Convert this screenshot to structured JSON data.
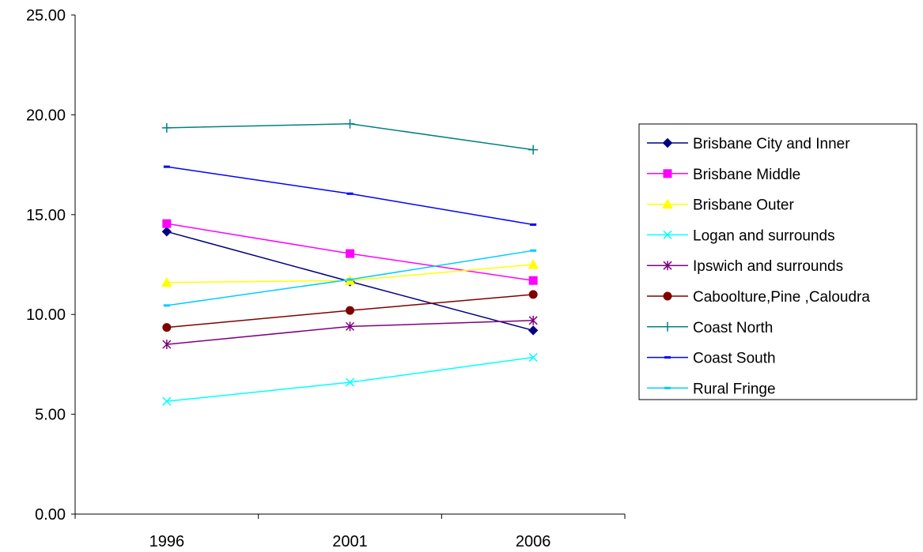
{
  "chart_data": {
    "type": "line",
    "x": [
      "1996",
      "2001",
      "2006"
    ],
    "ylim": [
      0,
      25
    ],
    "yticks": [
      "0.00",
      "5.00",
      "10.00",
      "15.00",
      "20.00",
      "25.00"
    ],
    "grid": false,
    "legend_position": "right",
    "series": [
      {
        "name": "Brisbane City and Inner",
        "values": [
          14.15,
          11.65,
          9.2
        ],
        "color": "#000080",
        "marker": "diamond"
      },
      {
        "name": "Brisbane Middle",
        "values": [
          14.55,
          13.05,
          11.7
        ],
        "color": "#FF00FF",
        "marker": "square"
      },
      {
        "name": "Brisbane Outer",
        "values": [
          11.6,
          11.7,
          12.5
        ],
        "color": "#FFFF00",
        "marker": "triangle"
      },
      {
        "name": "Logan and surrounds",
        "values": [
          5.65,
          6.6,
          7.85
        ],
        "color": "#00FFFF",
        "marker": "x"
      },
      {
        "name": "Ipswich and surrounds",
        "values": [
          8.5,
          9.4,
          9.7
        ],
        "color": "#800080",
        "marker": "star"
      },
      {
        "name": "Caboolture,Pine ,Caloudra",
        "values": [
          9.35,
          10.2,
          11.0
        ],
        "color": "#800000",
        "marker": "circle"
      },
      {
        "name": "Coast North",
        "values": [
          19.35,
          19.55,
          18.25
        ],
        "color": "#008080",
        "marker": "plus"
      },
      {
        "name": "Coast South",
        "values": [
          17.4,
          16.05,
          14.5
        ],
        "color": "#0000FF",
        "marker": "dash"
      },
      {
        "name": "Rural Fringe",
        "values": [
          10.45,
          11.75,
          13.2
        ],
        "color": "#00CCFF",
        "marker": "dash"
      }
    ]
  }
}
